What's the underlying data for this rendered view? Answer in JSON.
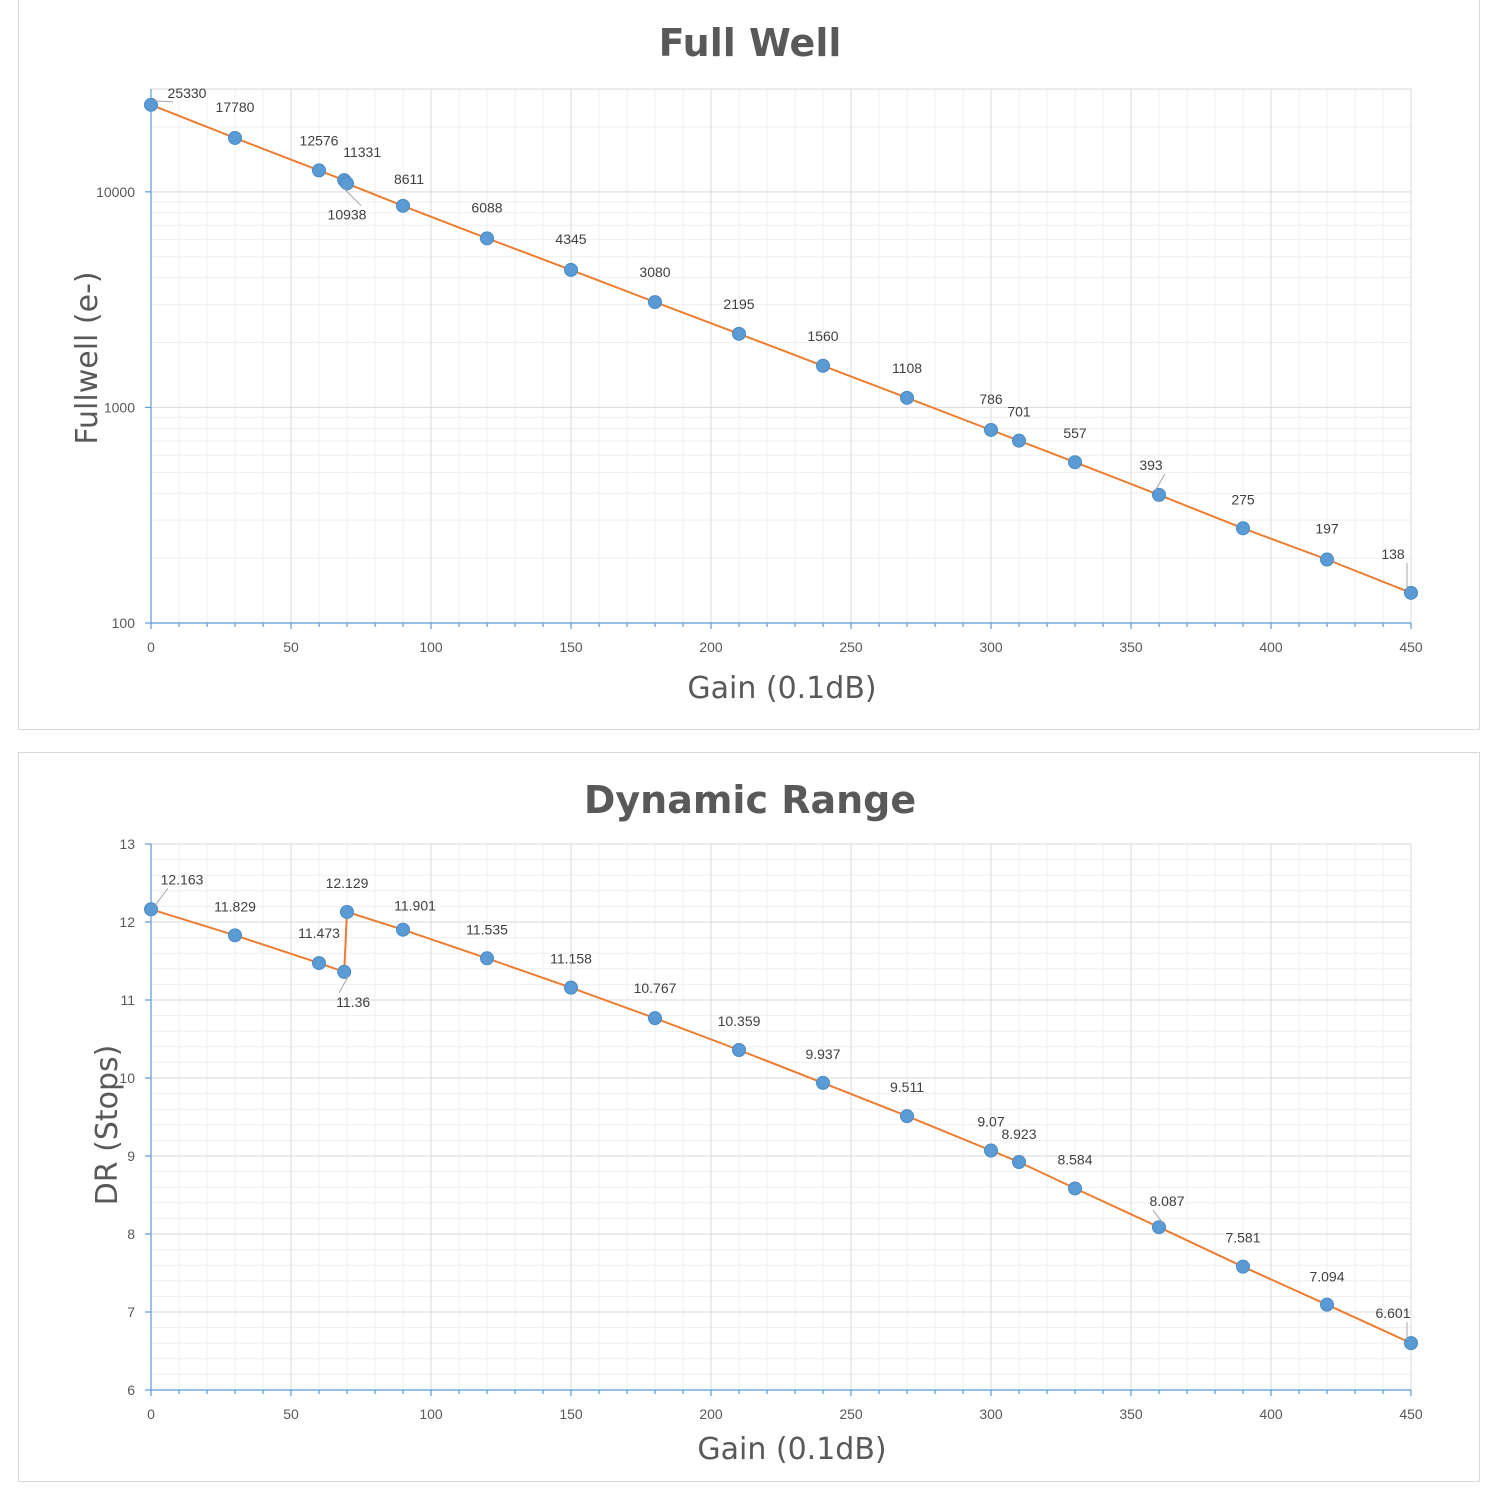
{
  "chart_data": [
    {
      "id": "fullwell",
      "type": "line",
      "title": "Full Well",
      "xlabel": "Gain (0.1dB)",
      "ylabel": "Fullwell (e-)",
      "xlim": [
        0,
        450
      ],
      "ylim": [
        100,
        30000
      ],
      "y_scale": "log",
      "x_ticks": [
        0,
        50,
        100,
        150,
        200,
        250,
        300,
        350,
        400,
        450
      ],
      "y_ticks": [
        100,
        1000,
        10000
      ],
      "grid": true,
      "legend": "none",
      "line_color": "#ed7d31",
      "marker_color": "#5b9bd5",
      "x": [
        0,
        30,
        60,
        69,
        70,
        90,
        120,
        150,
        180,
        210,
        240,
        270,
        300,
        310,
        330,
        360,
        390,
        420,
        450
      ],
      "y": [
        25330,
        17780,
        12576,
        11331,
        10938,
        8611,
        6088,
        4345,
        3080,
        2195,
        1560,
        1108,
        786,
        701,
        557,
        393,
        275,
        197,
        138
      ],
      "labels": [
        "25330",
        "17780",
        "12576",
        "11331",
        "10938",
        "8611",
        "6088",
        "4345",
        "3080",
        "2195",
        "1560",
        "1108",
        "786",
        "701",
        "557",
        "393",
        "275",
        "197",
        "138"
      ]
    },
    {
      "id": "dr",
      "type": "line",
      "title": "Dynamic Range",
      "xlabel": "Gain (0.1dB)",
      "ylabel": "DR (Stops)",
      "xlim": [
        0,
        450
      ],
      "ylim": [
        6,
        13
      ],
      "y_scale": "linear",
      "x_ticks": [
        0,
        50,
        100,
        150,
        200,
        250,
        300,
        350,
        400,
        450
      ],
      "y_ticks": [
        6,
        7,
        8,
        9,
        10,
        11,
        12,
        13
      ],
      "grid": true,
      "legend": "none",
      "line_color": "#ed7d31",
      "marker_color": "#5b9bd5",
      "x": [
        0,
        30,
        60,
        69,
        70,
        90,
        120,
        150,
        180,
        210,
        240,
        270,
        300,
        310,
        330,
        360,
        390,
        420,
        450
      ],
      "y": [
        12.163,
        11.829,
        11.473,
        11.36,
        12.129,
        11.901,
        11.535,
        11.158,
        10.767,
        10.359,
        9.937,
        9.511,
        9.07,
        8.923,
        8.584,
        8.087,
        7.581,
        7.094,
        6.601
      ],
      "labels": [
        "12.163",
        "11.829",
        "11.473",
        "11.36",
        "12.129",
        "11.901",
        "11.535",
        "11.158",
        "10.767",
        "10.359",
        "9.937",
        "9.511",
        "9.07",
        "8.923",
        "8.584",
        "8.087",
        "7.581",
        "7.094",
        "6.601"
      ]
    }
  ]
}
